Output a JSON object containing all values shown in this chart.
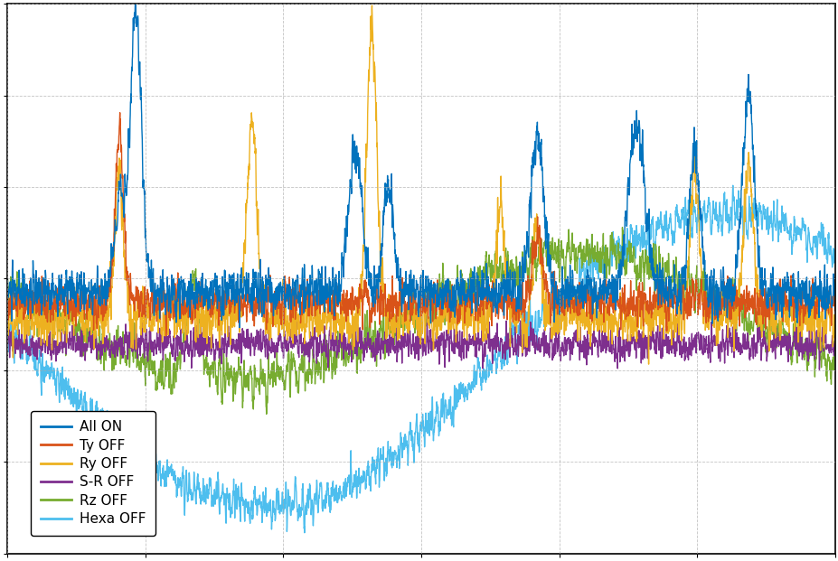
{
  "title": "",
  "xlabel": "",
  "ylabel": "",
  "legend_labels": [
    "All ON",
    "Ty OFF",
    "Ry OFF",
    "S-R OFF",
    "Rz OFF",
    "Hexa OFF"
  ],
  "colors": [
    "#0072BD",
    "#D95319",
    "#EDB120",
    "#7E2F8E",
    "#77AC30",
    "#4DBEEE"
  ],
  "line_widths": [
    1.0,
    1.0,
    1.0,
    1.0,
    1.0,
    1.0
  ],
  "background_color": "#ffffff",
  "grid_color": "#aaaaaa",
  "n_points": 4000,
  "seed": 42,
  "figsize": [
    9.28,
    6.21
  ],
  "dpi": 100
}
